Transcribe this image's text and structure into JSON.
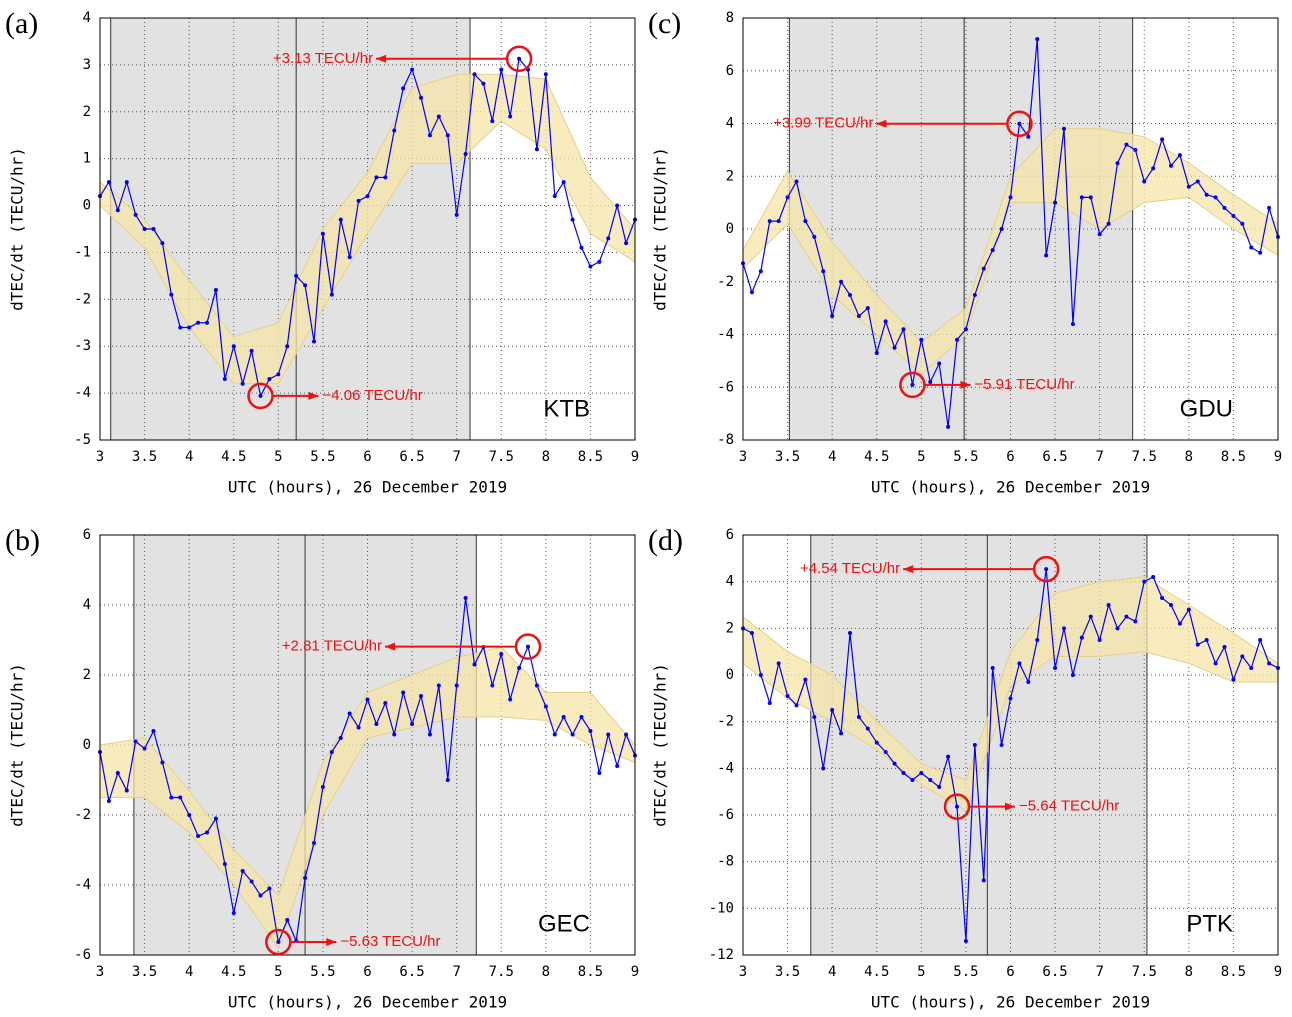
{
  "chart_data": [
    {
      "type": "line",
      "panel_label": "(a)",
      "station": "KTB",
      "xlabel": "UTC (hours), 26 December 2019",
      "ylabel": "dTEC/dt (TECU/hr)",
      "xlim": [
        3,
        9
      ],
      "ylim": [
        -5,
        4
      ],
      "xticks": [
        3,
        3.5,
        4,
        4.5,
        5,
        5.5,
        6,
        6.5,
        7,
        7.5,
        8,
        8.5,
        9
      ],
      "yticks": [
        -5,
        -4,
        -3,
        -2,
        -1,
        0,
        1,
        2,
        3,
        4
      ],
      "grid": true,
      "shaded": [
        3.12,
        7.15
      ],
      "vline": 5.2,
      "x": [
        3,
        3.1,
        3.2,
        3.3,
        3.4,
        3.5,
        3.6,
        3.7,
        3.8,
        3.9,
        4,
        4.1,
        4.2,
        4.3,
        4.4,
        4.5,
        4.6,
        4.7,
        4.8,
        4.9,
        5,
        5.1,
        5.2,
        5.3,
        5.4,
        5.5,
        5.6,
        5.7,
        5.8,
        5.9,
        6,
        6.1,
        6.2,
        6.3,
        6.4,
        6.5,
        6.6,
        6.7,
        6.8,
        6.9,
        7,
        7.1,
        7.2,
        7.3,
        7.4,
        7.5,
        7.6,
        7.7,
        7.8,
        7.9,
        8,
        8.1,
        8.2,
        8.3,
        8.4,
        8.5,
        8.6,
        8.7,
        8.8,
        8.9,
        9
      ],
      "series": [
        {
          "color": "#0000ff",
          "values": [
            0.2,
            0.5,
            -0.1,
            0.5,
            -0.2,
            -0.5,
            -0.5,
            -0.8,
            -1.9,
            -2.6,
            -2.6,
            -2.5,
            -2.5,
            -1.8,
            -3.7,
            -3.0,
            -3.8,
            -3.1,
            -4.06,
            -3.7,
            -3.6,
            -3.0,
            -1.5,
            -1.7,
            -2.9,
            -0.6,
            -1.9,
            -0.3,
            -1.1,
            0.1,
            0.2,
            0.6,
            0.6,
            1.6,
            2.5,
            2.9,
            2.3,
            1.5,
            1.9,
            1.5,
            -0.2,
            1.1,
            2.8,
            2.6,
            1.8,
            2.9,
            1.9,
            3.13,
            2.9,
            1.2,
            2.8,
            0.2,
            0.5,
            -0.3,
            -0.9,
            -1.3,
            -1.2,
            -0.7,
            0,
            -0.8,
            -0.3
          ]
        }
      ],
      "band": {
        "color": "#f5e4a8",
        "x": [
          3,
          3.5,
          4,
          4.5,
          5,
          5.5,
          6,
          6.5,
          7,
          7.5,
          8,
          8.5,
          9
        ],
        "lower": [
          0.0,
          -0.9,
          -2.6,
          -3.8,
          -3.8,
          -2.2,
          -0.6,
          0.9,
          0.9,
          1.8,
          1.2,
          -0.6,
          -1.2
        ],
        "upper": [
          0.5,
          -0.3,
          -1.6,
          -2.8,
          -2.5,
          -0.5,
          0.7,
          2.5,
          2.8,
          2.8,
          2.7,
          0.6,
          -0.5
        ]
      },
      "annotations": [
        {
          "label": "+3.13 TECU/hr",
          "value": 3.13,
          "x": 7.7
        },
        {
          "label": "−4.06 TECU/hr",
          "value": -4.06,
          "x": 4.8
        }
      ]
    },
    {
      "type": "line",
      "panel_label": "(b)",
      "station": "GEC",
      "xlabel": "UTC (hours), 26 December 2019",
      "ylabel": "dTEC/dt (TECU/hr)",
      "xlim": [
        3,
        9
      ],
      "ylim": [
        -6,
        6
      ],
      "xticks": [
        3,
        3.5,
        4,
        4.5,
        5,
        5.5,
        6,
        6.5,
        7,
        7.5,
        8,
        8.5,
        9
      ],
      "yticks": [
        -6,
        -4,
        -2,
        0,
        2,
        4,
        6
      ],
      "grid": true,
      "shaded": [
        3.38,
        7.22
      ],
      "vline": 5.3,
      "x": [
        3,
        3.1,
        3.2,
        3.3,
        3.4,
        3.5,
        3.6,
        3.7,
        3.8,
        3.9,
        4,
        4.1,
        4.2,
        4.3,
        4.4,
        4.5,
        4.6,
        4.7,
        4.8,
        4.9,
        5,
        5.1,
        5.2,
        5.3,
        5.4,
        5.5,
        5.6,
        5.7,
        5.8,
        5.9,
        6,
        6.1,
        6.2,
        6.3,
        6.4,
        6.5,
        6.6,
        6.7,
        6.8,
        6.9,
        7,
        7.1,
        7.2,
        7.3,
        7.4,
        7.5,
        7.6,
        7.7,
        7.8,
        7.9,
        8,
        8.1,
        8.2,
        8.3,
        8.4,
        8.5,
        8.6,
        8.7,
        8.8,
        8.9,
        9
      ],
      "series": [
        {
          "color": "#0000ff",
          "values": [
            -0.2,
            -1.6,
            -0.8,
            -1.3,
            0.1,
            -0.1,
            0.4,
            -0.5,
            -1.5,
            -1.5,
            -2.0,
            -2.6,
            -2.5,
            -2.1,
            -3.4,
            -4.8,
            -3.6,
            -3.9,
            -4.3,
            -4.1,
            -5.63,
            -5.0,
            -5.6,
            -3.8,
            -2.8,
            -1.2,
            -0.2,
            0.2,
            0.9,
            0.5,
            1.3,
            0.6,
            1.2,
            0.3,
            1.5,
            0.6,
            1.4,
            0.3,
            1.7,
            -1.0,
            1.7,
            4.2,
            2.3,
            2.8,
            1.7,
            2.6,
            1.3,
            2.2,
            2.81,
            1.7,
            1.1,
            0.3,
            0.8,
            0.3,
            0.8,
            0.4,
            -0.8,
            0.3,
            -0.6,
            0.3,
            -0.3
          ]
        }
      ],
      "band": {
        "color": "#f5e4a8",
        "x": [
          3,
          3.5,
          4,
          4.5,
          5,
          5.5,
          6,
          6.5,
          7,
          7.5,
          8,
          8.5,
          9
        ],
        "lower": [
          -1.5,
          -1.5,
          -2.5,
          -4.0,
          -5.8,
          -2.0,
          0.2,
          0.5,
          0.8,
          0.8,
          0.7,
          0.0,
          -0.5
        ],
        "upper": [
          0,
          0.2,
          -1.3,
          -3.0,
          -4.3,
          -0.5,
          1.5,
          2.0,
          2.5,
          2.8,
          1.5,
          1.5,
          0.0
        ]
      },
      "annotations": [
        {
          "label": "+2.81 TECU/hr",
          "value": 2.81,
          "x": 7.8
        },
        {
          "label": "−5.63 TECU/hr",
          "value": -5.63,
          "x": 5
        }
      ]
    },
    {
      "type": "line",
      "panel_label": "(c)",
      "station": "GDU",
      "xlabel": "UTC (hours), 26 December 2019",
      "ylabel": "dTEC/dt (TECU/hr)",
      "xlim": [
        3,
        9
      ],
      "ylim": [
        -8,
        8
      ],
      "xticks": [
        3,
        3.5,
        4,
        4.5,
        5,
        5.5,
        6,
        6.5,
        7,
        7.5,
        8,
        8.5,
        9
      ],
      "yticks": [
        -8,
        -6,
        -4,
        -2,
        0,
        2,
        4,
        6,
        8
      ],
      "grid": true,
      "shaded": [
        3.52,
        7.37
      ],
      "vline": 5.48,
      "x": [
        3,
        3.1,
        3.2,
        3.3,
        3.4,
        3.5,
        3.6,
        3.7,
        3.8,
        3.9,
        4,
        4.1,
        4.2,
        4.3,
        4.4,
        4.5,
        4.6,
        4.7,
        4.8,
        4.9,
        5,
        5.1,
        5.2,
        5.3,
        5.4,
        5.5,
        5.6,
        5.7,
        5.8,
        5.9,
        6,
        6.1,
        6.2,
        6.3,
        6.4,
        6.5,
        6.6,
        6.7,
        6.8,
        6.9,
        7,
        7.1,
        7.2,
        7.3,
        7.4,
        7.5,
        7.6,
        7.7,
        7.8,
        7.9,
        8,
        8.1,
        8.2,
        8.3,
        8.4,
        8.5,
        8.6,
        8.7,
        8.8,
        8.9,
        9
      ],
      "series": [
        {
          "color": "#0000ff",
          "values": [
            -1.3,
            -2.4,
            -1.6,
            0.3,
            0.3,
            1.2,
            1.8,
            0.3,
            -0.3,
            -1.6,
            -3.3,
            -2.0,
            -2.5,
            -3.3,
            -3.0,
            -4.7,
            -3.5,
            -4.5,
            -3.8,
            -5.91,
            -4.2,
            -5.8,
            -5.1,
            -7.5,
            -4.2,
            -3.8,
            -2.5,
            -1.5,
            -0.8,
            0.0,
            1.2,
            3.99,
            3.5,
            7.2,
            -1.0,
            1.0,
            3.8,
            -3.6,
            1.2,
            1.2,
            -0.2,
            0.2,
            2.5,
            3.2,
            3.0,
            1.8,
            2.3,
            3.4,
            2.4,
            2.8,
            1.6,
            1.8,
            1.3,
            1.2,
            0.8,
            0.5,
            0.2,
            -0.7,
            -0.9,
            0.8,
            -0.3
          ]
        }
      ],
      "band": {
        "color": "#f5e4a8",
        "x": [
          3,
          3.5,
          4,
          4.5,
          5,
          5.5,
          6,
          6.5,
          7,
          7.5,
          8,
          8.5,
          9
        ],
        "lower": [
          -1.5,
          0.2,
          -2.5,
          -4.0,
          -5.5,
          -4.0,
          1.0,
          1.0,
          0.0,
          1.0,
          1.2,
          0.0,
          -1.0
        ],
        "upper": [
          -0.8,
          2.2,
          -0.5,
          -2.5,
          -4.3,
          -3.0,
          2.0,
          3.8,
          3.8,
          3.5,
          2.5,
          1.3,
          0.2
        ]
      },
      "annotations": [
        {
          "label": "+3.99 TECU/hr",
          "value": 3.99,
          "x": 6.1
        },
        {
          "label": "−5.91 TECU/hr",
          "value": -5.91,
          "x": 4.9
        }
      ]
    },
    {
      "type": "line",
      "panel_label": "(d)",
      "station": "PTK",
      "xlabel": "UTC (hours), 26 December 2019",
      "ylabel": "dTEC/dt (TECU/hr)",
      "xlim": [
        3,
        9
      ],
      "ylim": [
        -12,
        6
      ],
      "xticks": [
        3,
        3.5,
        4,
        4.5,
        5,
        5.5,
        6,
        6.5,
        7,
        7.5,
        8,
        8.5,
        9
      ],
      "yticks": [
        -12,
        -10,
        -8,
        -6,
        -4,
        -2,
        0,
        2,
        4,
        6
      ],
      "grid": true,
      "shaded": [
        3.76,
        7.53
      ],
      "vline": 5.74,
      "x": [
        3,
        3.1,
        3.2,
        3.3,
        3.4,
        3.5,
        3.6,
        3.7,
        3.8,
        3.9,
        4,
        4.1,
        4.2,
        4.3,
        4.4,
        4.5,
        4.6,
        4.7,
        4.8,
        4.9,
        5,
        5.1,
        5.2,
        5.3,
        5.4,
        5.5,
        5.6,
        5.7,
        5.8,
        5.9,
        6,
        6.1,
        6.2,
        6.3,
        6.4,
        6.5,
        6.6,
        6.7,
        6.8,
        6.9,
        7,
        7.1,
        7.2,
        7.3,
        7.4,
        7.5,
        7.6,
        7.7,
        7.8,
        7.9,
        8,
        8.1,
        8.2,
        8.3,
        8.4,
        8.5,
        8.6,
        8.7,
        8.8,
        8.9,
        9
      ],
      "series": [
        {
          "color": "#0000ff",
          "values": [
            2.0,
            1.8,
            0.0,
            -1.2,
            0.5,
            -0.9,
            -1.3,
            -0.2,
            -1.8,
            -4.0,
            -1.5,
            -2.5,
            1.8,
            -1.8,
            -2.3,
            -2.9,
            -3.3,
            -3.8,
            -4.2,
            -4.5,
            -4.2,
            -4.5,
            -4.8,
            -3.5,
            -5.64,
            -11.4,
            -3.0,
            -8.8,
            0.3,
            -3.0,
            -1.0,
            0.5,
            -0.3,
            1.5,
            4.54,
            0.3,
            2.0,
            0.0,
            1.6,
            2.5,
            1.5,
            3.0,
            2.0,
            2.5,
            2.3,
            4.0,
            4.2,
            3.3,
            3.0,
            2.2,
            2.8,
            1.3,
            1.5,
            0.5,
            1.2,
            -0.2,
            0.8,
            0.3,
            1.5,
            0.5,
            0.3
          ]
        }
      ],
      "band": {
        "color": "#f5e4a8",
        "x": [
          3,
          3.5,
          4,
          4.5,
          5,
          5.5,
          6,
          6.5,
          7,
          7.5,
          8,
          8.5,
          9
        ],
        "lower": [
          0.5,
          -1.0,
          -2.0,
          -3.2,
          -4.7,
          -5.8,
          -0.5,
          0.8,
          0.8,
          1.0,
          0.5,
          -0.3,
          -0.3
        ],
        "upper": [
          2.5,
          1.0,
          0.0,
          -2.0,
          -3.8,
          -4.5,
          1.0,
          3.5,
          4.0,
          4.2,
          3.0,
          1.8,
          0.5
        ]
      },
      "annotations": [
        {
          "label": "+4.54 TECU/hr",
          "value": 4.54,
          "x": 6.4
        },
        {
          "label": "−5.64 TECU/hr",
          "value": -5.64,
          "x": 5.4
        }
      ]
    }
  ]
}
